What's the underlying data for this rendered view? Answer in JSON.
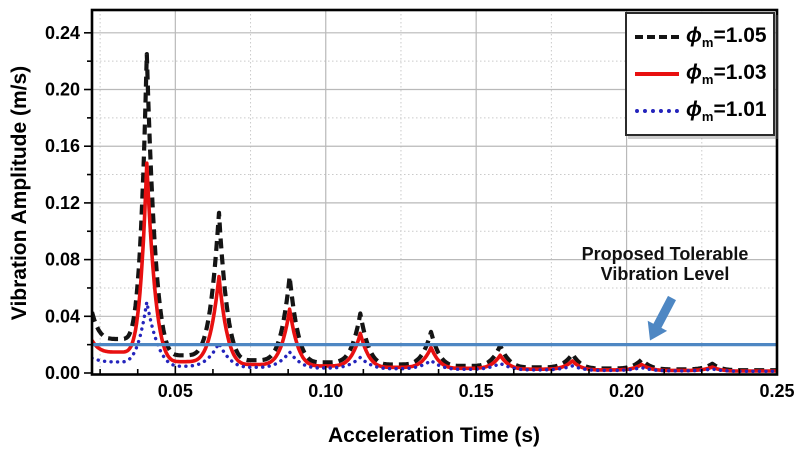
{
  "chart_data": {
    "type": "line",
    "title": "",
    "xlabel": "Acceleration Time (s)",
    "ylabel": "Vibration Amplitude (m/s)",
    "xlim": [
      0.0223,
      0.25
    ],
    "ylim": [
      0,
      0.2561
    ],
    "grid": {
      "on": true,
      "major_color": "#b9b9b9",
      "minor_color": "#cacaca"
    },
    "axis_color": "#000000",
    "xticks": {
      "major": [
        0.05,
        0.1,
        0.15,
        0.2,
        0.25
      ],
      "labels": [
        "0.05",
        "0.10",
        "0.15",
        "0.20",
        "0.25"
      ],
      "minor_step": 0.0125,
      "minor_grid": [
        0.025,
        0.075,
        0.125,
        0.175,
        0.225
      ]
    },
    "yticks": {
      "major": [
        0.0,
        0.04,
        0.08,
        0.12,
        0.16,
        0.2,
        0.24
      ],
      "labels": [
        "0.00",
        "0.04",
        "0.08",
        "0.12",
        "0.16",
        "0.20",
        "0.24"
      ],
      "minor": [
        0.02,
        0.06,
        0.1,
        0.14,
        0.18,
        0.22
      ]
    },
    "legend": {
      "position": "top-right"
    },
    "series": [
      {
        "name": "phi_m_1.05",
        "label": {
          "sym": "ϕ",
          "sub": "m",
          "val": "=1.05"
        },
        "color": "#141414",
        "style": "dashed",
        "width": 4.2,
        "sharpness": 4,
        "points": [
          [
            0.0223,
            0.043
          ],
          [
            0.0315,
            0.024
          ],
          [
            0.0405,
            0.225
          ],
          [
            0.0525,
            0.0125
          ],
          [
            0.0645,
            0.113
          ],
          [
            0.0762,
            0.009
          ],
          [
            0.088,
            0.068
          ],
          [
            0.0997,
            0.0075
          ],
          [
            0.1115,
            0.042
          ],
          [
            0.1232,
            0.006
          ],
          [
            0.135,
            0.029
          ],
          [
            0.1465,
            0.005
          ],
          [
            0.158,
            0.0195
          ],
          [
            0.17,
            0.004
          ],
          [
            0.182,
            0.0135
          ],
          [
            0.1935,
            0.0032
          ],
          [
            0.205,
            0.0095
          ],
          [
            0.217,
            0.0026
          ],
          [
            0.2285,
            0.0065
          ],
          [
            0.24,
            0.002
          ],
          [
            0.25,
            0.002
          ]
        ]
      },
      {
        "name": "phi_m_1.03",
        "label": {
          "sym": "ϕ",
          "sub": "m",
          "val": "=1.03"
        },
        "color": "#e81010",
        "style": "solid",
        "width": 3.6,
        "sharpness": 4,
        "points": [
          [
            0.0223,
            0.023
          ],
          [
            0.0315,
            0.0148
          ],
          [
            0.0405,
            0.148
          ],
          [
            0.0525,
            0.008
          ],
          [
            0.0645,
            0.068
          ],
          [
            0.0762,
            0.006
          ],
          [
            0.088,
            0.045
          ],
          [
            0.0997,
            0.005
          ],
          [
            0.1115,
            0.028
          ],
          [
            0.1232,
            0.004
          ],
          [
            0.135,
            0.018
          ],
          [
            0.1465,
            0.0033
          ],
          [
            0.158,
            0.0125
          ],
          [
            0.17,
            0.0027
          ],
          [
            0.182,
            0.0085
          ],
          [
            0.1935,
            0.0022
          ],
          [
            0.205,
            0.006
          ],
          [
            0.217,
            0.0018
          ],
          [
            0.2285,
            0.0042
          ],
          [
            0.24,
            0.0014
          ],
          [
            0.25,
            0.0014
          ]
        ]
      },
      {
        "name": "phi_m_1.01",
        "label": {
          "sym": "ϕ",
          "sub": "m",
          "val": "=1.01"
        },
        "color": "#2424bc",
        "style": "dotted",
        "width": 3.4,
        "sharpness": 3,
        "points": [
          [
            0.0223,
            0.0105
          ],
          [
            0.0315,
            0.0078
          ],
          [
            0.0405,
            0.05
          ],
          [
            0.0525,
            0.0048
          ],
          [
            0.0645,
            0.021
          ],
          [
            0.0762,
            0.004
          ],
          [
            0.088,
            0.0148
          ],
          [
            0.0997,
            0.0035
          ],
          [
            0.1115,
            0.011
          ],
          [
            0.1232,
            0.003
          ],
          [
            0.135,
            0.0088
          ],
          [
            0.1465,
            0.0026
          ],
          [
            0.158,
            0.0068
          ],
          [
            0.17,
            0.0022
          ],
          [
            0.182,
            0.005
          ],
          [
            0.1935,
            0.0018
          ],
          [
            0.205,
            0.0038
          ],
          [
            0.217,
            0.0015
          ],
          [
            0.2285,
            0.0028
          ],
          [
            0.24,
            0.0012
          ],
          [
            0.25,
            0.0012
          ]
        ]
      }
    ],
    "reference_line": {
      "y": 0.02,
      "color": "#4e87c3",
      "width": 3.2
    },
    "annotation": {
      "line1": "Proposed Tolerable",
      "line2": "Vibration Level",
      "arrow_color": "#4e87c3"
    }
  }
}
